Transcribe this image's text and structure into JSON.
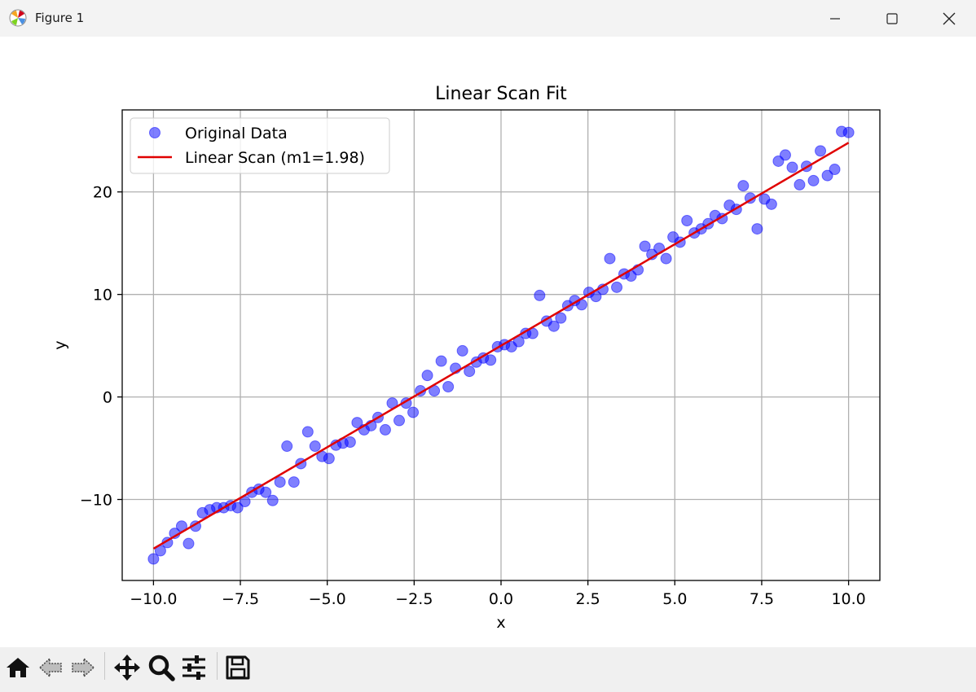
{
  "window": {
    "title": "Figure 1",
    "icons": [
      "matplotlib-app-icon",
      "minimize-icon",
      "maximize-icon",
      "close-icon"
    ]
  },
  "toolbar": {
    "icons": [
      "home-icon",
      "back-icon",
      "forward-icon",
      "pan-icon",
      "zoom-icon",
      "configure-subplots-icon",
      "save-icon"
    ]
  },
  "chart_data": {
    "type": "scatter",
    "title": "Linear Scan Fit",
    "xlabel": "x",
    "ylabel": "y",
    "xlim": [
      -10.9,
      10.9
    ],
    "ylim": [
      -17.9,
      28.0
    ],
    "xticks": [
      -10.0,
      -7.5,
      -5.0,
      -2.5,
      0.0,
      2.5,
      5.0,
      7.5,
      10.0
    ],
    "xtick_labels": [
      "−10.0",
      "−7.5",
      "−5.0",
      "−2.5",
      "0.0",
      "2.5",
      "5.0",
      "7.5",
      "10.0"
    ],
    "yticks": [
      -10,
      0,
      10,
      20
    ],
    "ytick_labels": [
      "−10",
      "0",
      "10",
      "20"
    ],
    "grid": true,
    "legend": {
      "position": "upper left",
      "entries": [
        "Original Data",
        "Linear Scan (m1=1.98)"
      ]
    },
    "series": [
      {
        "name": "Original Data",
        "kind": "scatter",
        "color": "#0000ff",
        "alpha": 0.5,
        "points": [
          [
            -10.0,
            -15.8
          ],
          [
            -9.8,
            -15.0
          ],
          [
            -9.6,
            -14.2
          ],
          [
            -9.39,
            -13.3
          ],
          [
            -9.19,
            -12.6
          ],
          [
            -8.99,
            -14.3
          ],
          [
            -8.79,
            -12.6
          ],
          [
            -8.59,
            -11.3
          ],
          [
            -8.38,
            -11.0
          ],
          [
            -8.18,
            -10.8
          ],
          [
            -7.98,
            -10.8
          ],
          [
            -7.78,
            -10.6
          ],
          [
            -7.58,
            -10.8
          ],
          [
            -7.37,
            -10.2
          ],
          [
            -7.17,
            -9.3
          ],
          [
            -6.97,
            -9.0
          ],
          [
            -6.77,
            -9.3
          ],
          [
            -6.57,
            -10.1
          ],
          [
            -6.36,
            -8.3
          ],
          [
            -6.16,
            -4.8
          ],
          [
            -5.96,
            -8.3
          ],
          [
            -5.76,
            -6.5
          ],
          [
            -5.56,
            -3.4
          ],
          [
            -5.35,
            -4.8
          ],
          [
            -5.15,
            -5.8
          ],
          [
            -4.95,
            -6.0
          ],
          [
            -4.75,
            -4.7
          ],
          [
            -4.55,
            -4.5
          ],
          [
            -4.34,
            -4.4
          ],
          [
            -4.14,
            -2.5
          ],
          [
            -3.94,
            -3.2
          ],
          [
            -3.74,
            -2.8
          ],
          [
            -3.54,
            -2.0
          ],
          [
            -3.33,
            -3.2
          ],
          [
            -3.13,
            -0.6
          ],
          [
            -2.93,
            -2.3
          ],
          [
            -2.73,
            -0.6
          ],
          [
            -2.53,
            -1.5
          ],
          [
            -2.32,
            0.6
          ],
          [
            -2.12,
            2.1
          ],
          [
            -1.92,
            0.6
          ],
          [
            -1.72,
            3.5
          ],
          [
            -1.52,
            1.0
          ],
          [
            -1.31,
            2.8
          ],
          [
            -1.11,
            4.5
          ],
          [
            -0.91,
            2.5
          ],
          [
            -0.71,
            3.4
          ],
          [
            -0.51,
            3.8
          ],
          [
            -0.3,
            3.6
          ],
          [
            -0.1,
            4.9
          ],
          [
            0.1,
            5.1
          ],
          [
            0.3,
            4.9
          ],
          [
            0.51,
            5.4
          ],
          [
            0.71,
            6.2
          ],
          [
            0.91,
            6.2
          ],
          [
            1.11,
            9.9
          ],
          [
            1.31,
            7.4
          ],
          [
            1.52,
            6.9
          ],
          [
            1.72,
            7.7
          ],
          [
            1.92,
            8.9
          ],
          [
            2.12,
            9.4
          ],
          [
            2.32,
            9.0
          ],
          [
            2.53,
            10.2
          ],
          [
            2.73,
            9.8
          ],
          [
            2.93,
            10.5
          ],
          [
            3.13,
            13.5
          ],
          [
            3.33,
            10.7
          ],
          [
            3.54,
            12.0
          ],
          [
            3.74,
            11.8
          ],
          [
            3.94,
            12.4
          ],
          [
            4.14,
            14.7
          ],
          [
            4.34,
            13.9
          ],
          [
            4.55,
            14.5
          ],
          [
            4.75,
            13.5
          ],
          [
            4.95,
            15.6
          ],
          [
            5.15,
            15.1
          ],
          [
            5.35,
            17.2
          ],
          [
            5.56,
            16.0
          ],
          [
            5.76,
            16.4
          ],
          [
            5.96,
            16.9
          ],
          [
            6.16,
            17.7
          ],
          [
            6.36,
            17.4
          ],
          [
            6.57,
            18.7
          ],
          [
            6.77,
            18.3
          ],
          [
            6.97,
            20.6
          ],
          [
            7.17,
            19.4
          ],
          [
            7.37,
            16.4
          ],
          [
            7.58,
            19.3
          ],
          [
            7.78,
            18.8
          ],
          [
            7.98,
            23.0
          ],
          [
            8.18,
            23.6
          ],
          [
            8.38,
            22.4
          ],
          [
            8.59,
            20.7
          ],
          [
            8.79,
            22.5
          ],
          [
            8.99,
            21.1
          ],
          [
            9.19,
            24.0
          ],
          [
            9.39,
            21.6
          ],
          [
            9.6,
            22.2
          ],
          [
            9.8,
            25.9
          ],
          [
            10.0,
            25.8
          ]
        ]
      },
      {
        "name": "Linear Scan (m1=1.98)",
        "kind": "line",
        "color": "#e00000",
        "points": [
          [
            -10.0,
            -14.8
          ],
          [
            10.0,
            24.8
          ]
        ]
      }
    ]
  }
}
